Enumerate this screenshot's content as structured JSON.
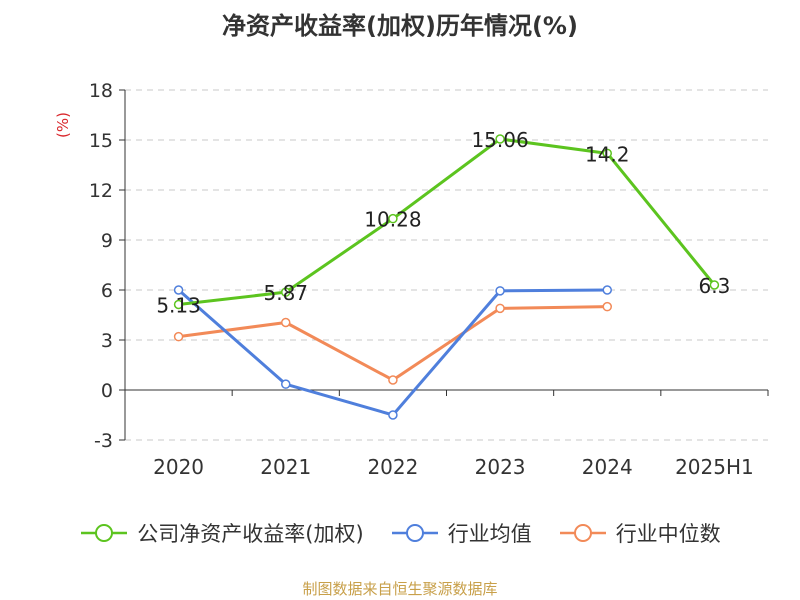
{
  "chart_data": {
    "type": "line",
    "title": "净资产收益率(加权)历年情况(%)",
    "ylabel": "(%)",
    "categories": [
      "2020",
      "2021",
      "2022",
      "2023",
      "2024",
      "2025H1"
    ],
    "ylim": [
      -3,
      18
    ],
    "yticks": [
      -3,
      0,
      3,
      6,
      9,
      12,
      15,
      18
    ],
    "grid": true,
    "legend_position": "bottom",
    "series": [
      {
        "name": "公司净资产收益率(加权)",
        "color": "#5cc41f",
        "values": [
          5.13,
          5.87,
          10.28,
          15.06,
          14.2,
          6.3
        ],
        "labels": [
          "5.13",
          "5.87",
          "10.28",
          "15.06",
          "14.2",
          "6.3"
        ]
      },
      {
        "name": "行业均值",
        "color": "#4f7fdc",
        "values": [
          6.0,
          0.35,
          -1.5,
          5.95,
          6.0,
          null
        ]
      },
      {
        "name": "行业中位数",
        "color": "#f28a58",
        "values": [
          3.2,
          4.05,
          0.6,
          4.9,
          5.0,
          null
        ]
      }
    ]
  },
  "source": "制图数据来自恒生聚源数据库"
}
